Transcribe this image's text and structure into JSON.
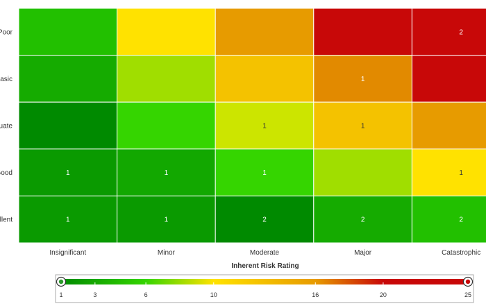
{
  "chart_data": {
    "type": "heatmap",
    "x_categories": [
      "Insignificant",
      "Minor",
      "Moderate",
      "Major",
      "Catastrophic"
    ],
    "y_categories": [
      "Poor",
      "Basic",
      "Adequate",
      "Good",
      "Excellent"
    ],
    "y_labels_visible": [
      "Poor",
      "asic",
      "uate",
      "Good",
      "llent"
    ],
    "xlabel": "Inherent Risk Rating",
    "cells": [
      [
        {
          "color": "#22c000",
          "value": ""
        },
        {
          "color": "#ffe200",
          "value": ""
        },
        {
          "color": "#e79b00",
          "value": ""
        },
        {
          "color": "#c80808",
          "value": ""
        },
        {
          "color": "#c80808",
          "value": "2"
        }
      ],
      [
        {
          "color": "#15ab00",
          "value": ""
        },
        {
          "color": "#a0de00",
          "value": ""
        },
        {
          "color": "#f4c200",
          "value": ""
        },
        {
          "color": "#e28a00",
          "value": "1"
        },
        {
          "color": "#c80808",
          "value": ""
        }
      ],
      [
        {
          "color": "#008a00",
          "value": ""
        },
        {
          "color": "#35d500",
          "value": ""
        },
        {
          "color": "#cce500",
          "value": "1"
        },
        {
          "color": "#f4c200",
          "value": "1"
        },
        {
          "color": "#e79b00",
          "value": ""
        }
      ],
      [
        {
          "color": "#0a9a00",
          "value": "1"
        },
        {
          "color": "#12a800",
          "value": "1"
        },
        {
          "color": "#35d500",
          "value": "1"
        },
        {
          "color": "#a0de00",
          "value": ""
        },
        {
          "color": "#ffe200",
          "value": "1"
        }
      ],
      [
        {
          "color": "#0a9a00",
          "value": "1"
        },
        {
          "color": "#0a9a00",
          "value": "1"
        },
        {
          "color": "#008a00",
          "value": "2"
        },
        {
          "color": "#15ab00",
          "value": "2"
        },
        {
          "color": "#22c000",
          "value": "2"
        }
      ]
    ],
    "color_scale": {
      "min": 1,
      "max": 25,
      "ticks": [
        1,
        3,
        6,
        10,
        16,
        20,
        25
      ],
      "stops": [
        {
          "value": 1,
          "color": "#008a00"
        },
        {
          "value": 6,
          "color": "#35d500"
        },
        {
          "value": 10,
          "color": "#ffe200"
        },
        {
          "value": 16,
          "color": "#e79b00"
        },
        {
          "value": 20,
          "color": "#c80808"
        },
        {
          "value": 25,
          "color": "#c80808"
        }
      ]
    }
  }
}
